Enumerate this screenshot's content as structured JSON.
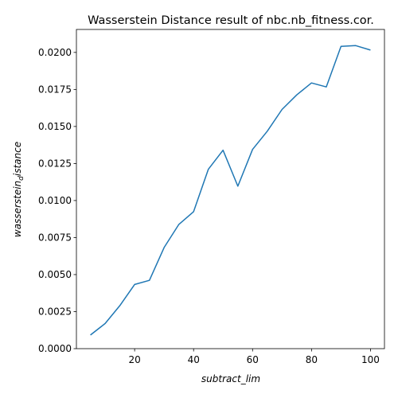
{
  "chart_data": {
    "type": "line",
    "title": "Wasserstein Distance result of nbc.nb_fitness.cor.",
    "xlabel": "subtract_lim",
    "ylabel": "wasserstein_distance",
    "ylabel_main": "wasserstein",
    "ylabel_sub": "d",
    "ylabel_rest": "istance",
    "xlim": [
      0.25,
      104.75
    ],
    "ylim": [
      0,
      0.02155
    ],
    "x_ticks": [
      20,
      40,
      60,
      80,
      100
    ],
    "x_tick_labels": [
      "20",
      "40",
      "60",
      "80",
      "100"
    ],
    "y_ticks": [
      0,
      0.0025,
      0.005,
      0.0075,
      0.01,
      0.0125,
      0.015,
      0.0175,
      0.02
    ],
    "y_tick_labels": [
      "0.0000",
      "0.0025",
      "0.0050",
      "0.0075",
      "0.0100",
      "0.0125",
      "0.0150",
      "0.0175",
      "0.0200"
    ],
    "grid": false,
    "line_color": "#1f77b4",
    "x": [
      5,
      10,
      15,
      20,
      25,
      30,
      35,
      40,
      45,
      50,
      55,
      60,
      65,
      70,
      75,
      80,
      85,
      90,
      95,
      100
    ],
    "y": [
      0.00092,
      0.0017,
      0.00291,
      0.00433,
      0.00461,
      0.00683,
      0.00839,
      0.00925,
      0.01211,
      0.0134,
      0.01097,
      0.01345,
      0.01468,
      0.01615,
      0.01713,
      0.01794,
      0.01767,
      0.02041,
      0.02046,
      0.02016
    ]
  }
}
